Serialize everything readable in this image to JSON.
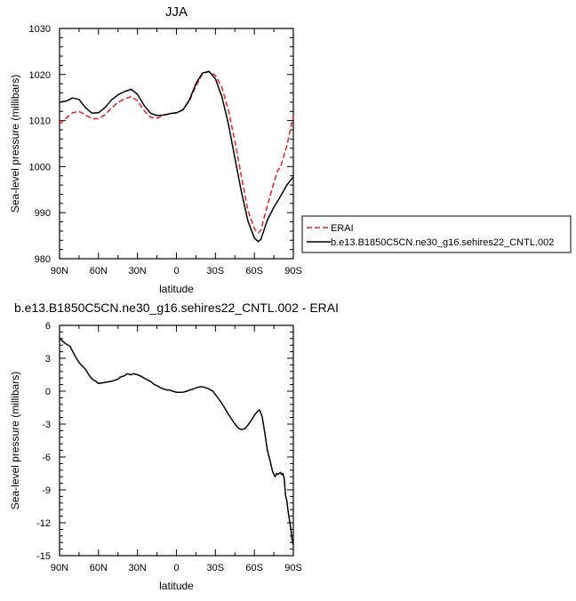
{
  "chart_data": [
    {
      "type": "line",
      "title": "JJA",
      "xlabel": "latitude",
      "ylabel": "Sea-level pressure (millibars)",
      "xlim": [
        90,
        -90
      ],
      "ylim": [
        980,
        1030
      ],
      "x_ticks": [
        90,
        60,
        30,
        0,
        -30,
        -60,
        -90
      ],
      "x_tick_labels": [
        "90N",
        "60N",
        "30N",
        "0",
        "30S",
        "60S",
        "90S"
      ],
      "y_ticks": [
        980,
        990,
        1000,
        1010,
        1020,
        1030
      ],
      "y_tick_labels": [
        "980",
        "990",
        "1000",
        "1010",
        "1020",
        "1030"
      ],
      "legend_position": "right",
      "series": [
        {
          "name": "ERAI",
          "color": "#e8221b",
          "dash": "dashed",
          "x": [
            90,
            85,
            80,
            75,
            70,
            65,
            60,
            55,
            50,
            45,
            40,
            35,
            30,
            25,
            20,
            15,
            10,
            5,
            0,
            -5,
            -10,
            -15,
            -20,
            -25,
            -30,
            -35,
            -40,
            -45,
            -50,
            -55,
            -60,
            -63,
            -65,
            -70,
            -75,
            -78,
            -80,
            -85,
            -90
          ],
          "y": [
            1009.2,
            1010.5,
            1011.7,
            1012,
            1011.2,
            1010.4,
            1010.4,
            1011.3,
            1012.7,
            1014,
            1014.7,
            1015.2,
            1014.3,
            1012.2,
            1010.7,
            1010.5,
            1011.1,
            1011.5,
            1011.6,
            1012.4,
            1014.3,
            1017.5,
            1020.1,
            1020.7,
            1019.8,
            1017.2,
            1012.3,
            1005.5,
            997.8,
            990.5,
            986.5,
            985.6,
            986.2,
            991.5,
            996.5,
            999.2,
            999.8,
            1004.5,
            1011
          ]
        },
        {
          "name": "b.e13.B1850C5CN.ne30_g16.sehires22_CNTL.002",
          "color": "#000000",
          "dash": "solid",
          "x": [
            90,
            85,
            80,
            75,
            70,
            65,
            60,
            55,
            50,
            45,
            40,
            35,
            30,
            25,
            20,
            15,
            10,
            5,
            0,
            -5,
            -10,
            -15,
            -20,
            -25,
            -30,
            -35,
            -40,
            -45,
            -50,
            -55,
            -60,
            -63,
            -65,
            -70,
            -75,
            -80,
            -85,
            -90
          ],
          "y": [
            1014,
            1014.2,
            1014.9,
            1014.6,
            1012.8,
            1011.6,
            1011.7,
            1012.8,
            1014.5,
            1015.6,
            1016.3,
            1016.8,
            1015.7,
            1013.3,
            1011.6,
            1011.1,
            1011.2,
            1011.5,
            1011.7,
            1012.3,
            1014.5,
            1018,
            1020.3,
            1020.7,
            1019.1,
            1015.2,
            1009.3,
            1001.8,
            994.5,
            988.2,
            984.5,
            983.7,
            984.2,
            988.4,
            991.2,
            993.5,
            996,
            997.8
          ]
        }
      ]
    },
    {
      "type": "line",
      "title": "b.e13.B1850C5CN.ne30_g16.sehires22_CNTL.002 - ERAI",
      "xlabel": "latitude",
      "ylabel": "Sea-level pressure (millibars)",
      "xlim": [
        90,
        -90
      ],
      "ylim": [
        -15,
        6
      ],
      "x_ticks": [
        90,
        60,
        30,
        0,
        -30,
        -60,
        -90
      ],
      "x_tick_labels": [
        "90N",
        "60N",
        "30N",
        "0",
        "30S",
        "60S",
        "90S"
      ],
      "y_ticks": [
        -15,
        -12,
        -9,
        -6,
        -3,
        0,
        3,
        6
      ],
      "y_tick_labels": [
        "-15",
        "-12",
        "-9",
        "-6",
        "-3",
        "0",
        "3",
        "6"
      ],
      "series": [
        {
          "color": "#000000",
          "x": [
            90,
            85,
            82,
            78,
            75,
            70,
            68,
            65,
            62,
            60,
            55,
            50,
            45,
            43,
            40,
            38,
            35,
            33,
            30,
            28,
            25,
            22,
            20,
            17,
            15,
            12,
            10,
            7,
            5,
            3,
            0,
            -3,
            -5,
            -8,
            -10,
            -13,
            -15,
            -18,
            -20,
            -23,
            -25,
            -28,
            -30,
            -35,
            -40,
            -45,
            -48,
            -50,
            -53,
            -55,
            -58,
            -60,
            -62,
            -64,
            -66,
            -68,
            -70,
            -72,
            -74,
            -75,
            -76,
            -77,
            -78,
            -80,
            -81,
            -82,
            -83,
            -84,
            -85,
            -86,
            -88,
            -89,
            -90
          ],
          "y": [
            4.8,
            4.3,
            4.1,
            3.2,
            2.6,
            2.0,
            1.6,
            1.1,
            0.9,
            0.7,
            0.8,
            0.9,
            1.1,
            1.3,
            1.4,
            1.6,
            1.5,
            1.6,
            1.5,
            1.4,
            1.2,
            1.0,
            0.9,
            0.6,
            0.5,
            0.3,
            0.2,
            0.1,
            0.1,
            0.0,
            -0.1,
            -0.1,
            -0.1,
            0.0,
            0.1,
            0.2,
            0.3,
            0.4,
            0.4,
            0.3,
            0.2,
            0.0,
            -0.3,
            -1.1,
            -2.1,
            -3.0,
            -3.4,
            -3.5,
            -3.4,
            -3.1,
            -2.6,
            -2.2,
            -1.9,
            -1.7,
            -2.3,
            -3.8,
            -5.4,
            -6.3,
            -7.3,
            -7.6,
            -7.8,
            -7.5,
            -7.6,
            -7.4,
            -7.6,
            -7.5,
            -8.0,
            -9.5,
            -10.0,
            -11.0,
            -12.5,
            -13.5,
            -14.0
          ]
        }
      ]
    }
  ]
}
